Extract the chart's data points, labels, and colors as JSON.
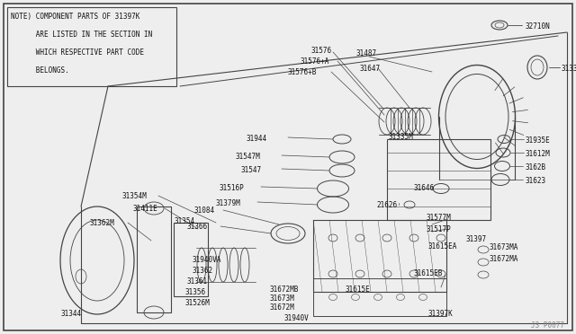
{
  "bg_color": "#eeeeee",
  "line_color": "#444444",
  "text_color": "#111111",
  "note_text_lines": [
    "NOTE) COMPONENT PARTS OF 31397K",
    "      ARE LISTED IN THE SECTION IN",
    "      WHICH RESPECTIVE PART CODE",
    "      BELONGS."
  ],
  "watermark": "J3 P0077",
  "fig_w": 6.4,
  "fig_h": 3.72,
  "dpi": 100
}
